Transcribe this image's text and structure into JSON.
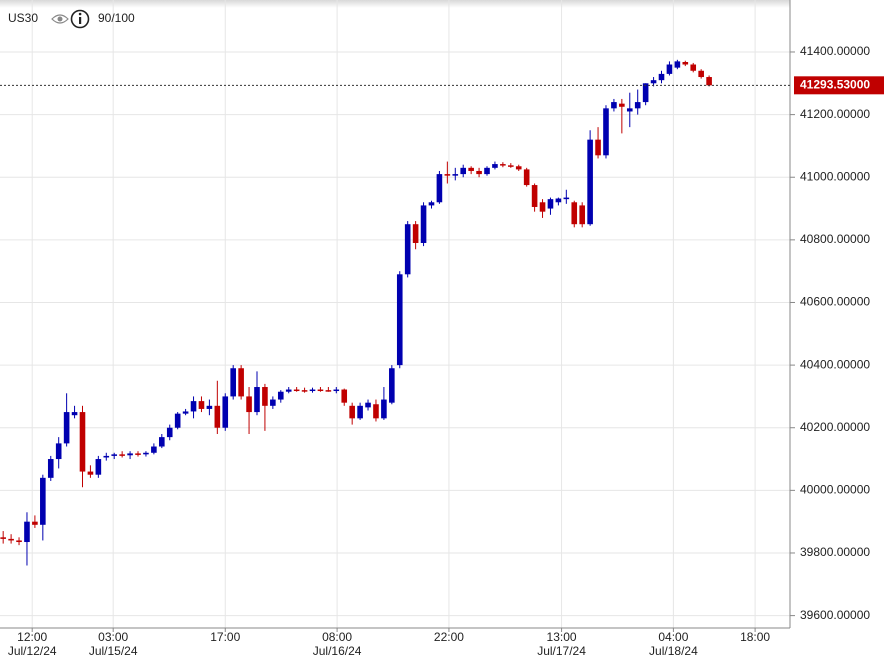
{
  "chart_data": {
    "type": "candlestick",
    "symbol": "US30",
    "rating": "90/100",
    "up_color": "#0000b0",
    "down_color": "#c00000",
    "grid": true,
    "ylim": [
      39570,
      41566
    ],
    "yticks": [
      {
        "value": 39600,
        "label": "39600.00000"
      },
      {
        "value": 39800,
        "label": "39800.00000"
      },
      {
        "value": 40000,
        "label": "40000.00000"
      },
      {
        "value": 40200,
        "label": "40200.00000"
      },
      {
        "value": 40400,
        "label": "40400.00000"
      },
      {
        "value": 40600,
        "label": "40600.00000"
      },
      {
        "value": 40800,
        "label": "40800.00000"
      },
      {
        "value": 41000,
        "label": "41000.00000"
      },
      {
        "value": 41200,
        "label": "41200.00000"
      },
      {
        "value": 41400,
        "label": "41400.00000"
      }
    ],
    "xlim": [
      -0.4,
      99.2
    ],
    "xticks": [
      {
        "value": 3.66,
        "label": "12:00",
        "date": "Jul/12/24"
      },
      {
        "value": 13.87,
        "label": "03:00",
        "date": "Jul/15/24"
      },
      {
        "value": 28.0,
        "label": "17:00"
      },
      {
        "value": 42.1,
        "label": "08:00",
        "date": "Jul/16/24"
      },
      {
        "value": 56.2,
        "label": "22:00"
      },
      {
        "value": 70.4,
        "label": "13:00",
        "date": "Jul/17/24"
      },
      {
        "value": 84.5,
        "label": "04:00",
        "date": "Jul/18/24"
      },
      {
        "value": 94.8,
        "label": "18:00"
      }
    ],
    "last_price": {
      "value": 41293.53,
      "label": "41293.53000"
    },
    "open": [
      39850,
      39845,
      39840,
      39835,
      39900,
      39890,
      40040,
      40100,
      40150,
      40240,
      40250,
      40060,
      40050,
      40105,
      40110,
      40115,
      40112,
      40118,
      40115,
      40120,
      40140,
      40170,
      40200,
      40245,
      40252,
      40285,
      40260,
      40270,
      40200,
      40300,
      40390,
      40300,
      40250,
      40330,
      40270,
      40290,
      40315,
      40322,
      40320,
      40318,
      40322,
      40320,
      40318,
      40322,
      40270,
      40230,
      40265,
      40275,
      40230,
      40280,
      40400,
      40690,
      40850,
      40790,
      40910,
      40920,
      41010,
      41005,
      41010,
      41030,
      41020,
      41010,
      41030,
      41042,
      41038,
      41035,
      41025,
      40975,
      40920,
      40900,
      40920,
      40930,
      40920,
      40910,
      40850,
      41120,
      41070,
      41220,
      41235,
      41210,
      41220,
      41240,
      41300,
      41310,
      41330,
      41350,
      41368,
      41360,
      41340,
      41320
    ],
    "high": [
      39870,
      39860,
      39850,
      39930,
      39920,
      40050,
      40110,
      40170,
      40310,
      40270,
      40270,
      40080,
      40110,
      40120,
      40120,
      40125,
      40125,
      40125,
      40125,
      40150,
      40180,
      40210,
      40250,
      40260,
      40300,
      40300,
      40290,
      40350,
      40310,
      40400,
      40400,
      40330,
      40380,
      40340,
      40300,
      40320,
      40330,
      40330,
      40328,
      40328,
      40330,
      40330,
      40330,
      40325,
      40280,
      40280,
      40290,
      40290,
      40330,
      40400,
      40700,
      40860,
      40860,
      40920,
      40925,
      41020,
      41050,
      41030,
      41040,
      41035,
      41030,
      41035,
      41050,
      41048,
      41045,
      41040,
      41030,
      40980,
      40930,
      40935,
      40935,
      40960,
      40925,
      40920,
      41150,
      41160,
      41230,
      41250,
      41250,
      41270,
      41280,
      41300,
      41320,
      41340,
      41370,
      41375,
      41372,
      41365,
      41345,
      41325
    ],
    "low": [
      39830,
      39830,
      39825,
      39760,
      39880,
      39840,
      40030,
      40070,
      40140,
      40230,
      40010,
      40040,
      40040,
      40095,
      40100,
      40105,
      40100,
      40108,
      40108,
      40115,
      40135,
      40160,
      40195,
      40240,
      40230,
      40250,
      40240,
      40180,
      40190,
      40290,
      40290,
      40180,
      40240,
      40190,
      40260,
      40280,
      40310,
      40315,
      40312,
      40312,
      40315,
      40315,
      40310,
      40270,
      40210,
      40225,
      40255,
      40220,
      40225,
      40275,
      40390,
      40680,
      40770,
      40780,
      40900,
      40915,
      40980,
      40990,
      41000,
      41010,
      41000,
      41005,
      41025,
      41032,
      41030,
      41020,
      40970,
      40890,
      40870,
      40880,
      40910,
      40915,
      40840,
      40840,
      40845,
      41060,
      41060,
      41210,
      41140,
      41160,
      41200,
      41230,
      41290,
      41300,
      41325,
      41345,
      41355,
      41335,
      41315,
      41290
    ],
    "close": [
      39845,
      39840,
      39835,
      39900,
      39890,
      40040,
      40100,
      40150,
      40250,
      40250,
      40060,
      40050,
      40100,
      40110,
      40115,
      40112,
      40118,
      40115,
      40120,
      40140,
      40170,
      40200,
      40245,
      40252,
      40285,
      40260,
      40270,
      40200,
      40300,
      40390,
      40300,
      40250,
      40330,
      40270,
      40290,
      40315,
      40322,
      40320,
      40318,
      40322,
      40320,
      40318,
      40322,
      40280,
      40230,
      40270,
      40280,
      40230,
      40290,
      40390,
      40690,
      40850,
      40790,
      40910,
      40920,
      41010,
      41005,
      41010,
      41030,
      41020,
      41010,
      41030,
      41042,
      41038,
      41035,
      41025,
      40975,
      40905,
      40890,
      40930,
      40932,
      40935,
      40850,
      40850,
      41120,
      41070,
      41220,
      41240,
      41225,
      41220,
      41240,
      41300,
      41310,
      41330,
      41360,
      41370,
      41360,
      41340,
      41320,
      41293.53
    ]
  }
}
